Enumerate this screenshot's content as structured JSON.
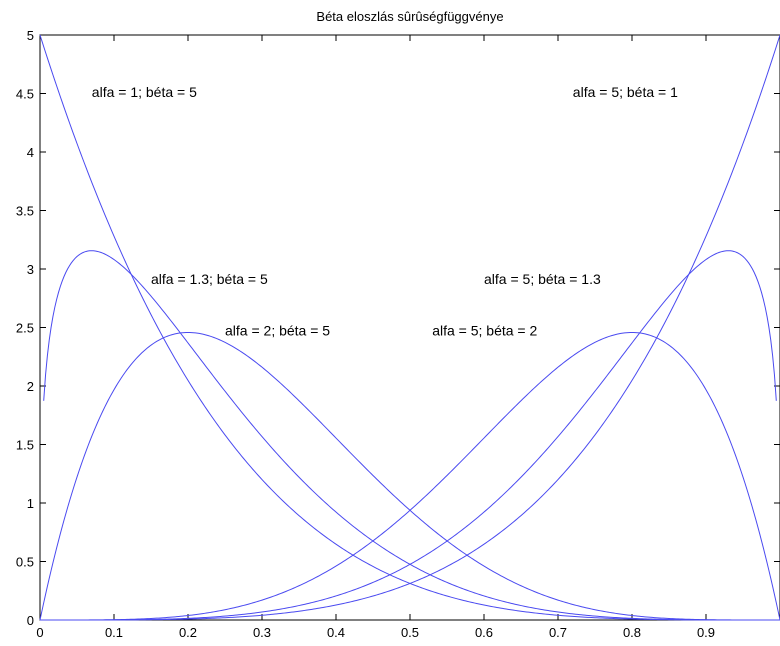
{
  "chart_data": {
    "type": "line",
    "title": "Béta eloszlás sûrûségfüggvénye",
    "xlabel": "",
    "ylabel": "",
    "xlim": [
      0,
      1
    ],
    "ylim": [
      0,
      5
    ],
    "x_ticks": [
      0,
      0.1,
      0.2,
      0.3,
      0.4,
      0.5,
      0.6,
      0.7,
      0.8,
      0.9
    ],
    "x_tick_labels": [
      "0",
      "0.1",
      "0.2",
      "0.3",
      "0.4",
      "0.5",
      "0.6",
      "0.7",
      "0.8",
      "0.9"
    ],
    "y_ticks": [
      0,
      0.5,
      1,
      1.5,
      2,
      2.5,
      3,
      3.5,
      4,
      4.5,
      5
    ],
    "y_tick_labels": [
      "0",
      "0.5",
      "1",
      "1.5",
      "2",
      "2.5",
      "3",
      "3.5",
      "4",
      "4.5",
      "5"
    ],
    "grid": false,
    "line_color": "#4a4af0",
    "series": [
      {
        "alpha": 1,
        "beta": 5,
        "x_range": [
          0,
          1
        ]
      },
      {
        "alpha": 1.3,
        "beta": 5,
        "x_range": [
          0.005,
          1
        ]
      },
      {
        "alpha": 2,
        "beta": 5,
        "x_range": [
          0,
          1
        ]
      },
      {
        "alpha": 5,
        "beta": 2,
        "x_range": [
          0,
          1
        ]
      },
      {
        "alpha": 5,
        "beta": 1.3,
        "x_range": [
          0,
          0.995
        ]
      },
      {
        "alpha": 5,
        "beta": 1,
        "x_range": [
          0,
          1
        ]
      }
    ],
    "annotations": [
      {
        "text": "alfa = 1; béta = 5",
        "x": 0.07,
        "y": 4.47
      },
      {
        "text": "alfa = 1.3; béta = 5",
        "x": 0.15,
        "y": 2.87
      },
      {
        "text": "alfa = 2; béta = 5",
        "x": 0.25,
        "y": 2.43
      },
      {
        "text": "alfa = 5; béta = 1",
        "x": 0.72,
        "y": 4.47
      },
      {
        "text": "alfa = 5; béta = 1.3",
        "x": 0.6,
        "y": 2.87
      },
      {
        "text": "alfa = 5; béta = 2",
        "x": 0.53,
        "y": 2.43
      }
    ]
  }
}
